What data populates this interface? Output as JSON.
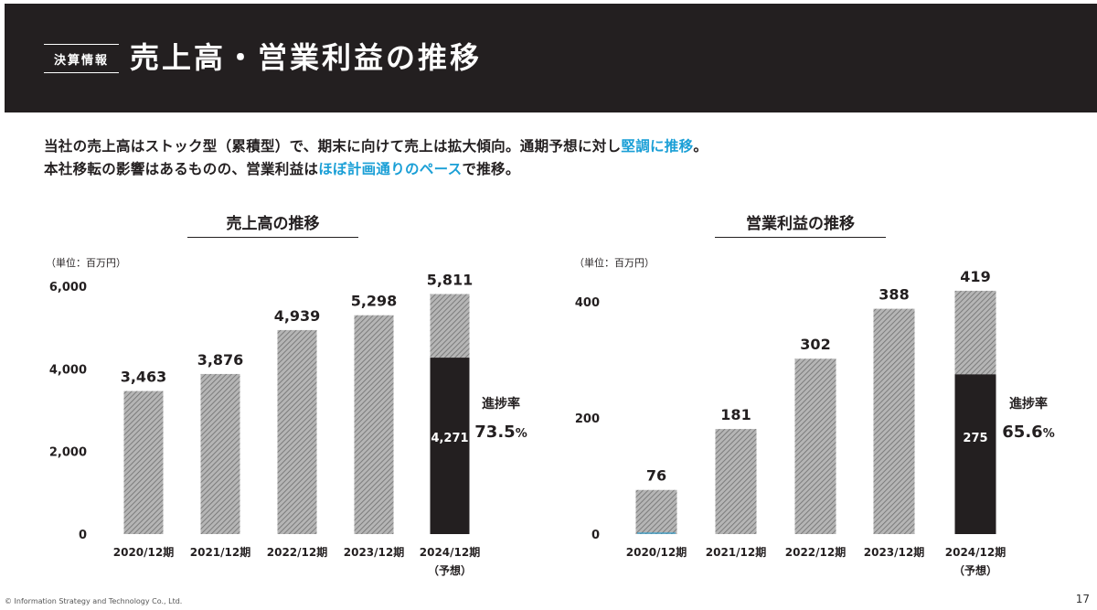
{
  "header": {
    "tag": "決算情報",
    "title": "売上高・営業利益の推移"
  },
  "lead": {
    "line1_a": "当社の売上高はストック型（累積型）で、期末に向けて売上は拡大傾向。通期予想に対し",
    "line1_hl": "堅調に推移",
    "line1_b": "。",
    "line2_a": "本社移転の影響はあるものの、営業利益は",
    "line2_hl": "ほぼ計画通りのペース",
    "line2_b": "で推移。"
  },
  "colors": {
    "accent": "#1a9fd6",
    "dark": "#231f20",
    "hatch": "#8c8c8c"
  },
  "chart_data": [
    {
      "type": "bar",
      "title": "売上高の推移",
      "unit": "（単位：百万円）",
      "categories": [
        "2020/12期",
        "2021/12期",
        "2022/12期",
        "2023/12期",
        "2024/12期"
      ],
      "sub_label": "（予想）",
      "values": [
        3463,
        3876,
        4939,
        5298,
        5811
      ],
      "value_labels": [
        "3,463",
        "3,876",
        "4,939",
        "5,298",
        "5,811"
      ],
      "actual": 4271,
      "actual_label": "4,271",
      "progress_label": "進捗率",
      "progress": "73.5",
      "progress_unit": "%",
      "ylim": [
        0,
        6000
      ],
      "yticks": [
        0,
        2000,
        4000,
        6000
      ],
      "ytick_labels": [
        "0",
        "2,000",
        "4,000",
        "6,000"
      ]
    },
    {
      "type": "bar",
      "title": "営業利益の推移",
      "unit": "（単位：百万円）",
      "categories": [
        "2020/12期",
        "2021/12期",
        "2022/12期",
        "2023/12期",
        "2024/12期"
      ],
      "sub_label": "（予想）",
      "values": [
        76,
        181,
        302,
        388,
        419
      ],
      "value_labels": [
        "76",
        "181",
        "302",
        "388",
        "419"
      ],
      "actual": 275,
      "actual_label": "275",
      "progress_label": "進捗率",
      "progress": "65.6",
      "progress_unit": "%",
      "ylim": [
        0,
        419
      ],
      "yticks": [
        0,
        200,
        400
      ],
      "ytick_labels": [
        "0",
        "200",
        "400"
      ]
    }
  ],
  "footer": {
    "copyright": "© Information Strategy and Technology Co., Ltd.",
    "page": "17"
  }
}
